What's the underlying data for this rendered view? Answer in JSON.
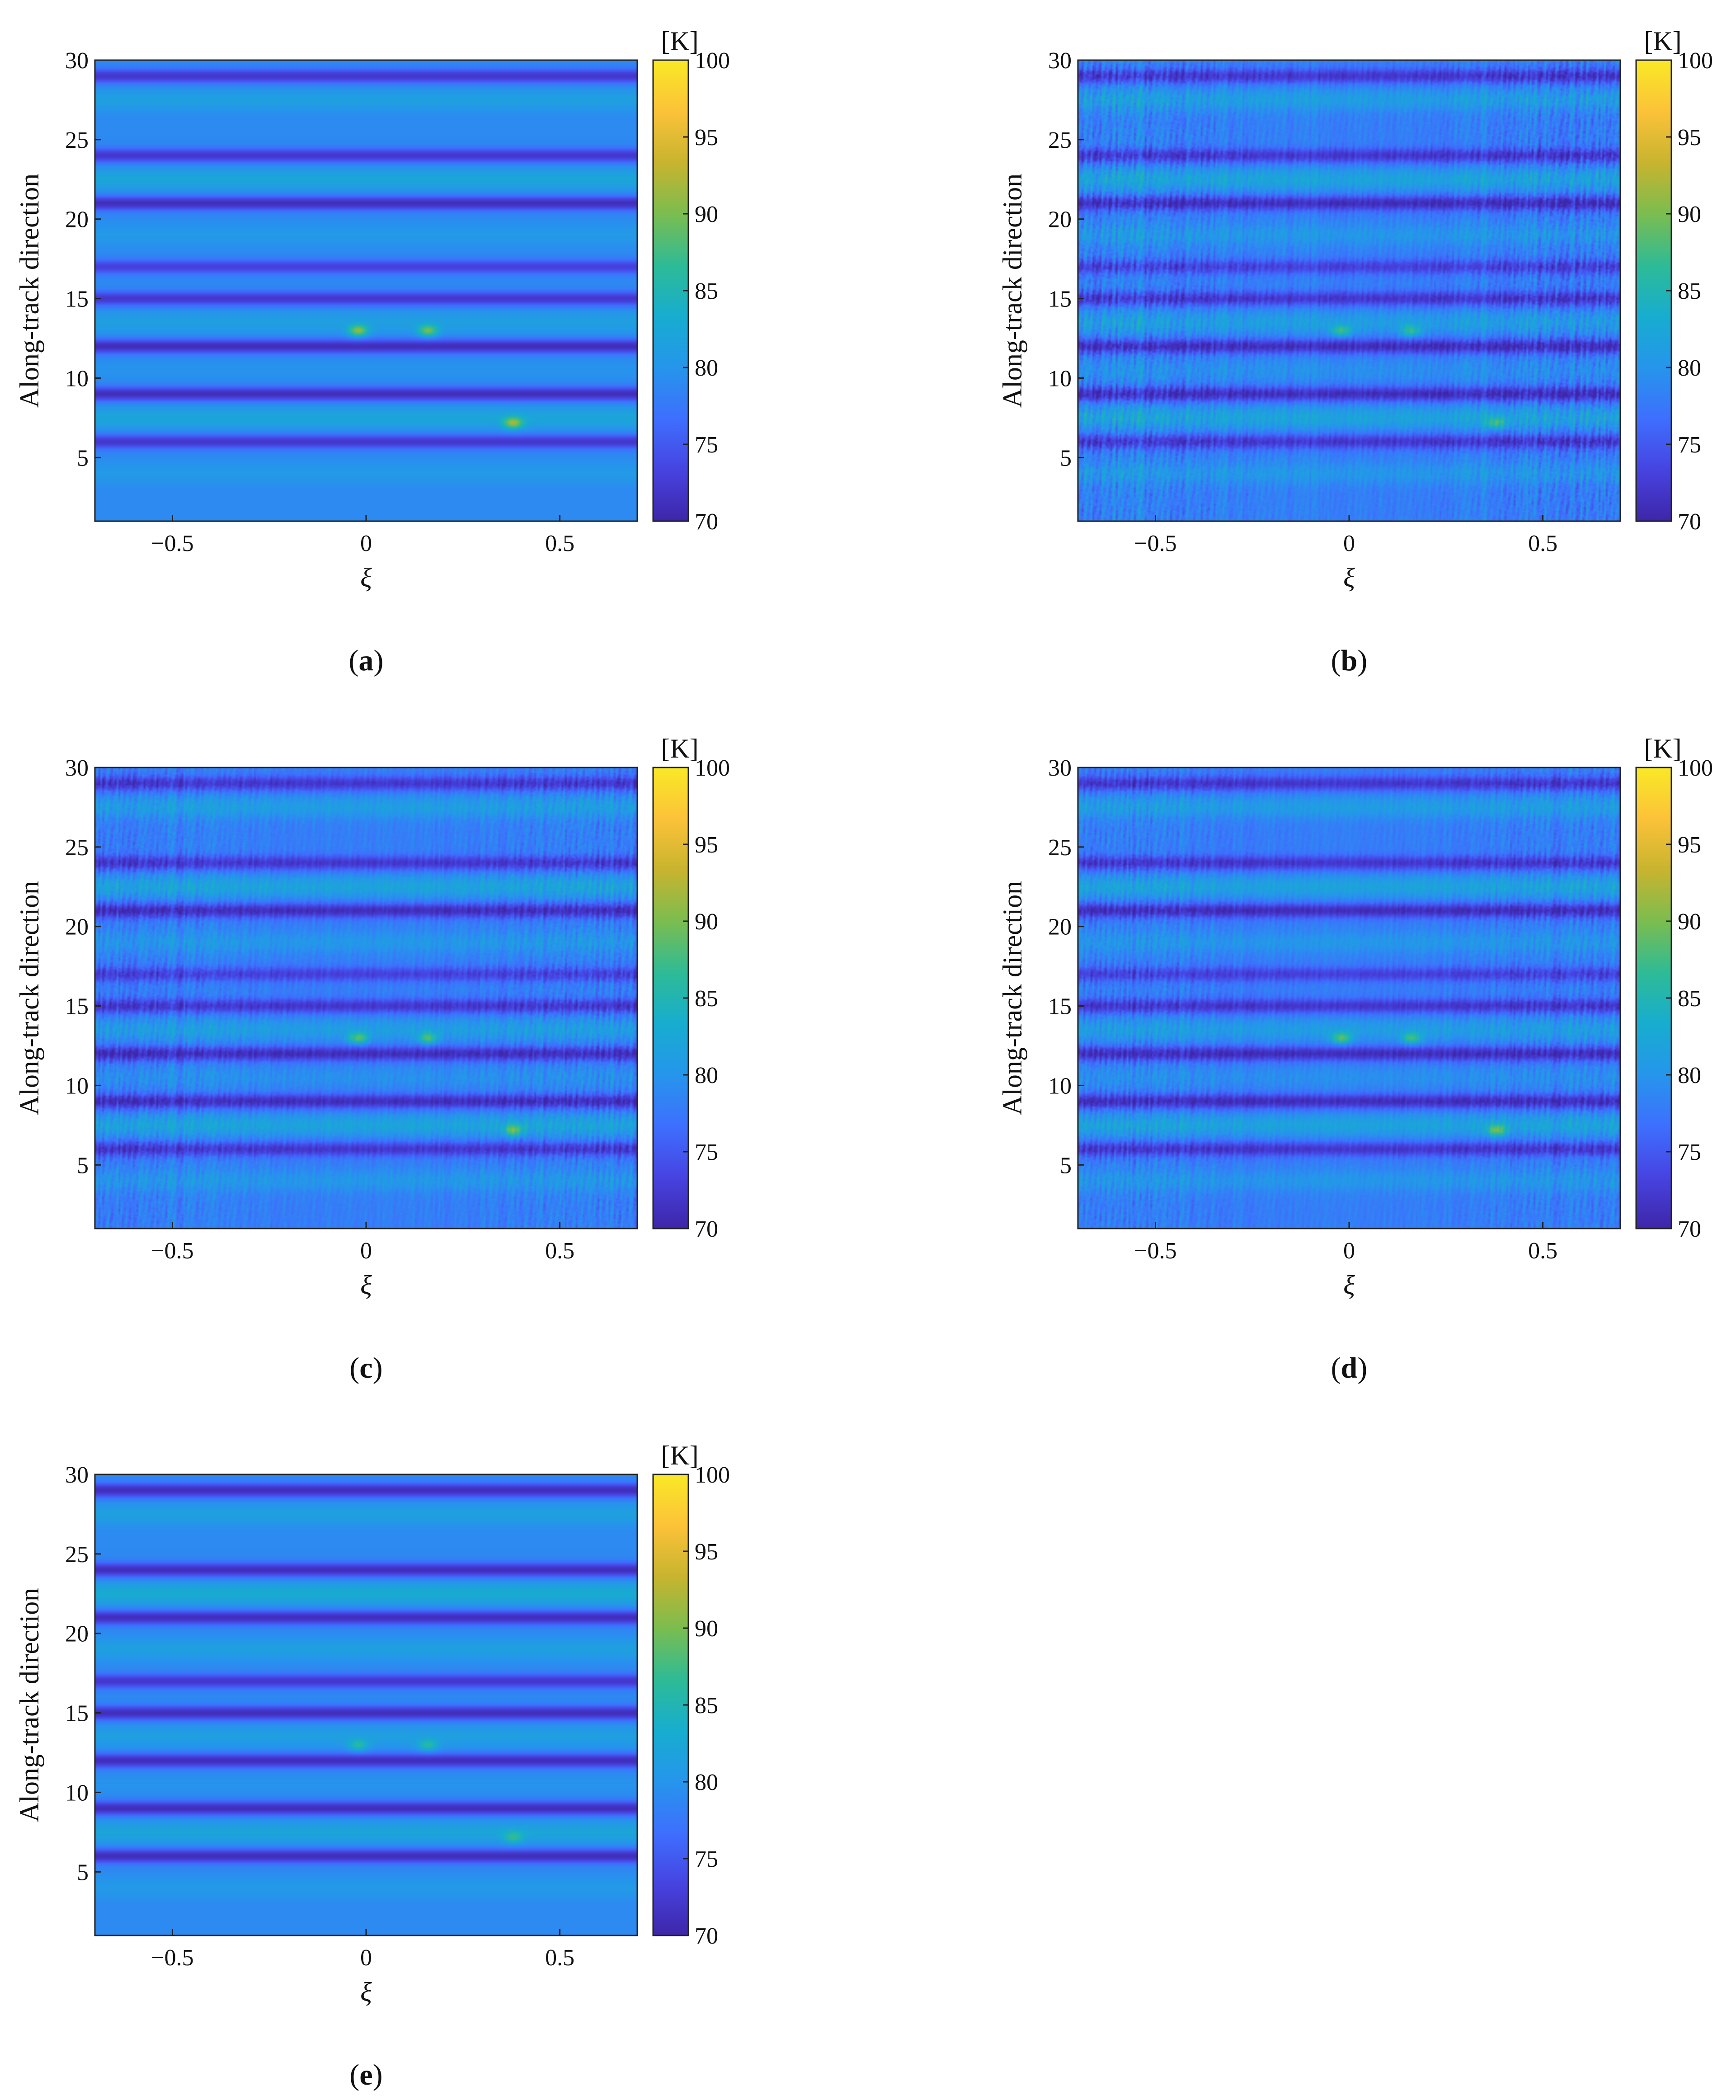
{
  "colormap": [
    "#3e26a8",
    "#4743e1",
    "#3e6ffe",
    "#2695ec",
    "#17adcf",
    "#2ebb95",
    "#7bbd4f",
    "#c8b42f",
    "#fcc239",
    "#f9e926"
  ],
  "chart_data": [
    {
      "type": "heatmap",
      "panel_label": "a",
      "xlabel": "ξ",
      "ylabel": "Along-track direction",
      "colorbar_unit": "[K]",
      "xlim": [
        -0.7,
        0.7
      ],
      "ylim": [
        1,
        30
      ],
      "x_ticks": [
        "−0.5",
        "0",
        "0.5"
      ],
      "y_ticks": [
        "5",
        "10",
        "15",
        "20",
        "25",
        "30"
      ],
      "clim": [
        70,
        100
      ],
      "colorbar_ticks": [
        "70",
        "75",
        "80",
        "85",
        "90",
        "95",
        "100"
      ],
      "noise": 0.0,
      "base_K": 79,
      "cold_bands": [
        {
          "y": 29,
          "K": 72
        },
        {
          "y": 24,
          "K": 72
        },
        {
          "y": 21,
          "K": 71
        },
        {
          "y": 17,
          "K": 73
        },
        {
          "y": 15,
          "K": 72
        },
        {
          "y": 12,
          "K": 71
        },
        {
          "y": 9,
          "K": 71
        },
        {
          "y": 6,
          "K": 72
        }
      ],
      "warm_bands": [
        {
          "y": 27.5,
          "K": 82
        },
        {
          "y": 22.5,
          "K": 83
        },
        {
          "y": 19,
          "K": 81
        },
        {
          "y": 13.5,
          "K": 82
        },
        {
          "y": 10.5,
          "K": 80
        },
        {
          "y": 7.5,
          "K": 83
        },
        {
          "y": 4,
          "K": 81
        }
      ],
      "hot_spots": [
        {
          "x": -0.02,
          "y": 13,
          "K": 91
        },
        {
          "x": 0.16,
          "y": 13,
          "K": 90
        },
        {
          "x": 0.38,
          "y": 7.2,
          "K": 92
        }
      ]
    },
    {
      "type": "heatmap",
      "panel_label": "b",
      "xlabel": "ξ",
      "ylabel": "Along-track direction",
      "colorbar_unit": "[K]",
      "xlim": [
        -0.7,
        0.7
      ],
      "ylim": [
        1,
        30
      ],
      "x_ticks": [
        "−0.5",
        "0",
        "0.5"
      ],
      "y_ticks": [
        "5",
        "10",
        "15",
        "20",
        "25",
        "30"
      ],
      "clim": [
        70,
        100
      ],
      "colorbar_ticks": [
        "70",
        "75",
        "80",
        "85",
        "90",
        "95",
        "100"
      ],
      "noise": 4.0,
      "base_K": 78,
      "cold_bands": [
        {
          "y": 29,
          "K": 72
        },
        {
          "y": 24,
          "K": 72
        },
        {
          "y": 21,
          "K": 71
        },
        {
          "y": 17,
          "K": 73
        },
        {
          "y": 15,
          "K": 72
        },
        {
          "y": 12,
          "K": 71
        },
        {
          "y": 9,
          "K": 71
        },
        {
          "y": 6,
          "K": 72
        }
      ],
      "warm_bands": [
        {
          "y": 27.5,
          "K": 82
        },
        {
          "y": 22.5,
          "K": 83
        },
        {
          "y": 19,
          "K": 81
        },
        {
          "y": 13.5,
          "K": 82
        },
        {
          "y": 10.5,
          "K": 80
        },
        {
          "y": 7.5,
          "K": 83
        },
        {
          "y": 4,
          "K": 81
        }
      ],
      "hot_spots": [
        {
          "x": -0.02,
          "y": 13,
          "K": 88
        },
        {
          "x": 0.16,
          "y": 13,
          "K": 87
        },
        {
          "x": 0.38,
          "y": 7.2,
          "K": 88
        }
      ]
    },
    {
      "type": "heatmap",
      "panel_label": "c",
      "xlabel": "ξ",
      "ylabel": "Along-track direction",
      "colorbar_unit": "[K]",
      "xlim": [
        -0.7,
        0.7
      ],
      "ylim": [
        1,
        30
      ],
      "x_ticks": [
        "−0.5",
        "0",
        "0.5"
      ],
      "y_ticks": [
        "5",
        "10",
        "15",
        "20",
        "25",
        "30"
      ],
      "clim": [
        70,
        100
      ],
      "colorbar_ticks": [
        "70",
        "75",
        "80",
        "85",
        "90",
        "95",
        "100"
      ],
      "noise": 3.0,
      "base_K": 78,
      "cold_bands": [
        {
          "y": 29,
          "K": 72
        },
        {
          "y": 24,
          "K": 72
        },
        {
          "y": 21,
          "K": 71
        },
        {
          "y": 17,
          "K": 73
        },
        {
          "y": 15,
          "K": 72
        },
        {
          "y": 12,
          "K": 71
        },
        {
          "y": 9,
          "K": 71
        },
        {
          "y": 6,
          "K": 72
        }
      ],
      "warm_bands": [
        {
          "y": 27.5,
          "K": 82
        },
        {
          "y": 22.5,
          "K": 83
        },
        {
          "y": 19,
          "K": 81
        },
        {
          "y": 13.5,
          "K": 82
        },
        {
          "y": 10.5,
          "K": 80
        },
        {
          "y": 7.5,
          "K": 83
        },
        {
          "y": 4,
          "K": 81
        }
      ],
      "hot_spots": [
        {
          "x": -0.02,
          "y": 13,
          "K": 89
        },
        {
          "x": 0.16,
          "y": 13,
          "K": 88
        },
        {
          "x": 0.38,
          "y": 7.2,
          "K": 90
        }
      ]
    },
    {
      "type": "heatmap",
      "panel_label": "d",
      "xlabel": "ξ",
      "ylabel": "Along-track direction",
      "colorbar_unit": "[K]",
      "xlim": [
        -0.7,
        0.7
      ],
      "ylim": [
        1,
        30
      ],
      "x_ticks": [
        "−0.5",
        "0",
        "0.5"
      ],
      "y_ticks": [
        "5",
        "10",
        "15",
        "20",
        "25",
        "30"
      ],
      "clim": [
        70,
        100
      ],
      "colorbar_ticks": [
        "70",
        "75",
        "80",
        "85",
        "90",
        "95",
        "100"
      ],
      "noise": 3.0,
      "base_K": 78,
      "cold_bands": [
        {
          "y": 29,
          "K": 72
        },
        {
          "y": 24,
          "K": 72
        },
        {
          "y": 21,
          "K": 71
        },
        {
          "y": 17,
          "K": 73
        },
        {
          "y": 15,
          "K": 72
        },
        {
          "y": 12,
          "K": 71
        },
        {
          "y": 9,
          "K": 71
        },
        {
          "y": 6,
          "K": 72
        }
      ],
      "warm_bands": [
        {
          "y": 27.5,
          "K": 82
        },
        {
          "y": 22.5,
          "K": 83
        },
        {
          "y": 19,
          "K": 81
        },
        {
          "y": 13.5,
          "K": 82
        },
        {
          "y": 10.5,
          "K": 80
        },
        {
          "y": 7.5,
          "K": 83
        },
        {
          "y": 4,
          "K": 81
        }
      ],
      "hot_spots": [
        {
          "x": -0.02,
          "y": 13,
          "K": 89
        },
        {
          "x": 0.16,
          "y": 13,
          "K": 88
        },
        {
          "x": 0.38,
          "y": 7.2,
          "K": 90
        }
      ]
    },
    {
      "type": "heatmap",
      "panel_label": "e",
      "xlabel": "ξ",
      "ylabel": "Along-track direction",
      "colorbar_unit": "[K]",
      "xlim": [
        -0.7,
        0.7
      ],
      "ylim": [
        1,
        30
      ],
      "x_ticks": [
        "−0.5",
        "0",
        "0.5"
      ],
      "y_ticks": [
        "5",
        "10",
        "15",
        "20",
        "25",
        "30"
      ],
      "clim": [
        70,
        100
      ],
      "colorbar_ticks": [
        "70",
        "75",
        "80",
        "85",
        "90",
        "95",
        "100"
      ],
      "noise": 0.0,
      "base_K": 79,
      "cold_bands": [
        {
          "y": 29,
          "K": 71
        },
        {
          "y": 24,
          "K": 71
        },
        {
          "y": 21,
          "K": 71
        },
        {
          "y": 17,
          "K": 72
        },
        {
          "y": 15,
          "K": 71
        },
        {
          "y": 12,
          "K": 71
        },
        {
          "y": 9,
          "K": 71
        },
        {
          "y": 6,
          "K": 71
        }
      ],
      "warm_bands": [
        {
          "y": 27.5,
          "K": 82
        },
        {
          "y": 22.5,
          "K": 84
        },
        {
          "y": 19,
          "K": 82
        },
        {
          "y": 13.5,
          "K": 82
        },
        {
          "y": 10.5,
          "K": 80
        },
        {
          "y": 7.5,
          "K": 83
        },
        {
          "y": 4,
          "K": 81
        }
      ],
      "hot_spots": [
        {
          "x": -0.02,
          "y": 13,
          "K": 86
        },
        {
          "x": 0.16,
          "y": 13,
          "K": 86
        },
        {
          "x": 0.38,
          "y": 7.2,
          "K": 87
        }
      ]
    }
  ]
}
